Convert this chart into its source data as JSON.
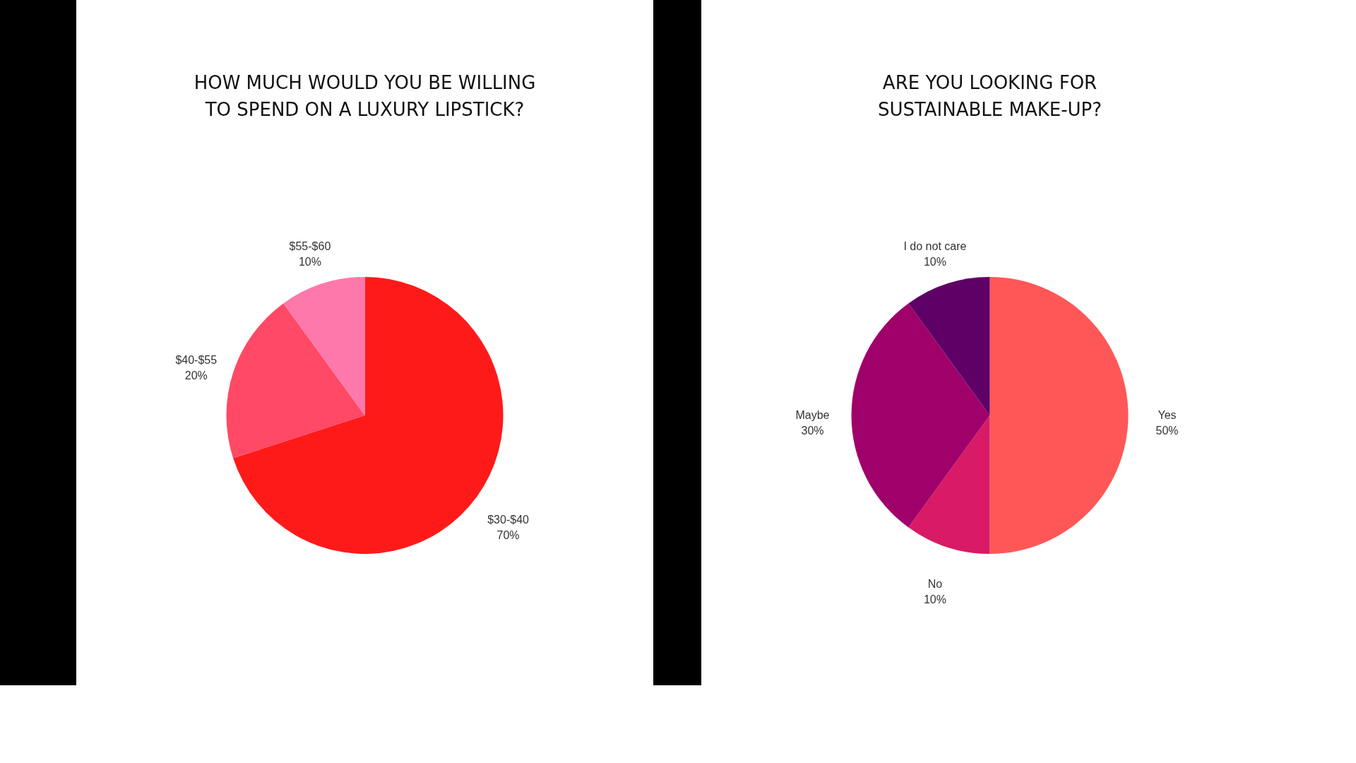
{
  "chart_data": [
    {
      "type": "pie",
      "title": "HOW MUCH WOULD YOU BE WILLING TO SPEND ON A LUXURY LIPSTICK?",
      "categories": [
        "$30-$40",
        "$40-$55",
        "$55-$60"
      ],
      "values": [
        70,
        20,
        10
      ],
      "value_labels": [
        "70%",
        "20%",
        "10%"
      ],
      "colors": [
        "#ff1a1a",
        "#ff4966",
        "#ff78ac"
      ]
    },
    {
      "type": "pie",
      "title": "ARE YOU LOOKING FOR SUSTAINABLE MAKE-UP?",
      "categories": [
        "Yes",
        "No",
        "Maybe",
        "I do not care"
      ],
      "values": [
        50,
        10,
        30,
        10
      ],
      "value_labels": [
        "50%",
        "10%",
        "30%",
        "10%"
      ],
      "colors": [
        "#ff5757",
        "#d91a66",
        "#a0006a",
        "#5e0066"
      ]
    }
  ]
}
